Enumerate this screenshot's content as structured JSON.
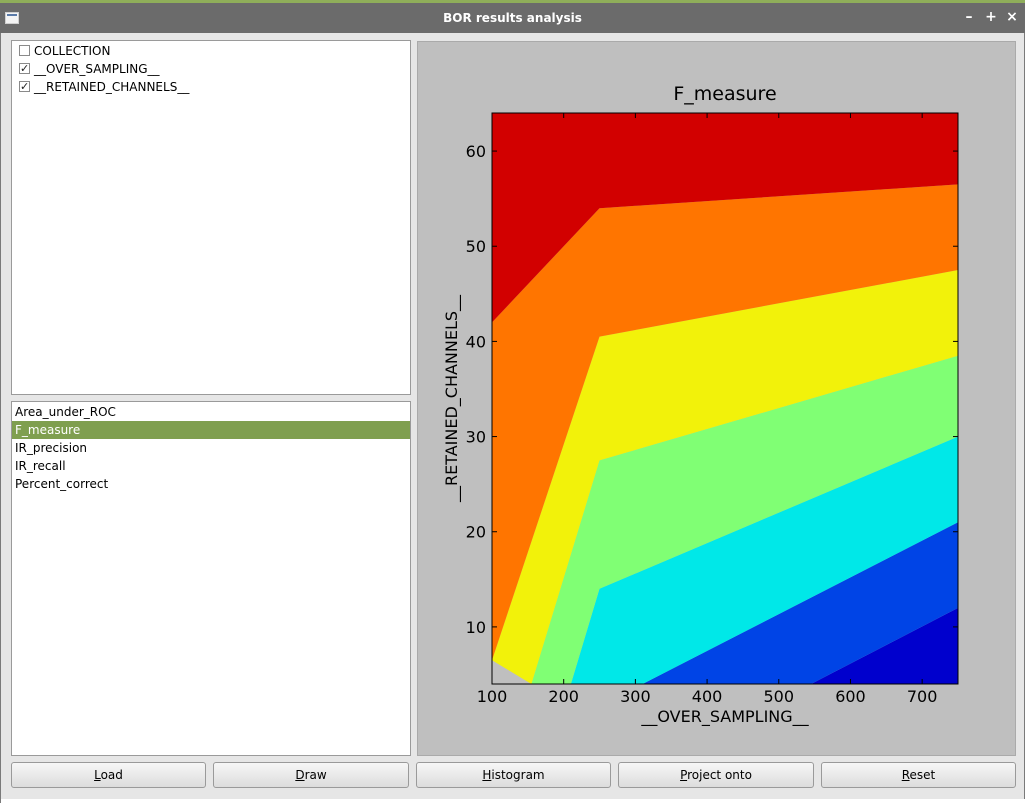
{
  "window": {
    "title": "BOR results analysis",
    "controls": [
      "–",
      "+",
      "×"
    ]
  },
  "attributes": [
    {
      "label": "COLLECTION",
      "checked": false
    },
    {
      "label": "__OVER_SAMPLING__",
      "checked": true
    },
    {
      "label": "__RETAINED_CHANNELS__",
      "checked": true
    }
  ],
  "measures": {
    "items": [
      "Area_under_ROC",
      "F_measure",
      "IR_precision",
      "IR_recall",
      "Percent_correct"
    ],
    "selected": "F_measure"
  },
  "buttons": [
    {
      "key": "L",
      "rest": "oad",
      "name": "load-button"
    },
    {
      "key": "D",
      "rest": "raw",
      "name": "draw-button"
    },
    {
      "key": "H",
      "rest": "istogram",
      "name": "histogram-button"
    },
    {
      "key": "P",
      "rest": "roject onto",
      "name": "project-onto-button"
    },
    {
      "key": "R",
      "rest": "eset",
      "name": "reset-button"
    }
  ],
  "chart_data": {
    "type": "filled-contour",
    "title": "F_measure",
    "xlabel": "__OVER_SAMPLING__",
    "ylabel": "__RETAINED_CHANNELS__",
    "xlim": [
      100,
      750
    ],
    "ylim": [
      4,
      64
    ],
    "xticks": [
      100,
      200,
      300,
      400,
      500,
      600,
      700
    ],
    "yticks": [
      10,
      20,
      30,
      40,
      50,
      60
    ],
    "level_colors": [
      "#0000cd",
      "#0044e6",
      "#00e8e8",
      "#80ff74",
      "#f2f20a",
      "#ff7500",
      "#d20000"
    ],
    "level_boundaries": [
      [
        [
          545,
          4
        ],
        [
          750,
          12
        ]
      ],
      [
        [
          310,
          4
        ],
        [
          750,
          21
        ]
      ],
      [
        [
          210,
          4
        ],
        [
          250,
          14
        ],
        [
          750,
          30
        ]
      ],
      [
        [
          155,
          4
        ],
        [
          250,
          27.5
        ],
        [
          750,
          38.5
        ]
      ],
      [
        [
          100,
          6.5
        ],
        [
          250,
          40.5
        ],
        [
          750,
          47.5
        ]
      ],
      [
        [
          100,
          42
        ],
        [
          250,
          54
        ],
        [
          750,
          56.5
        ]
      ]
    ]
  }
}
